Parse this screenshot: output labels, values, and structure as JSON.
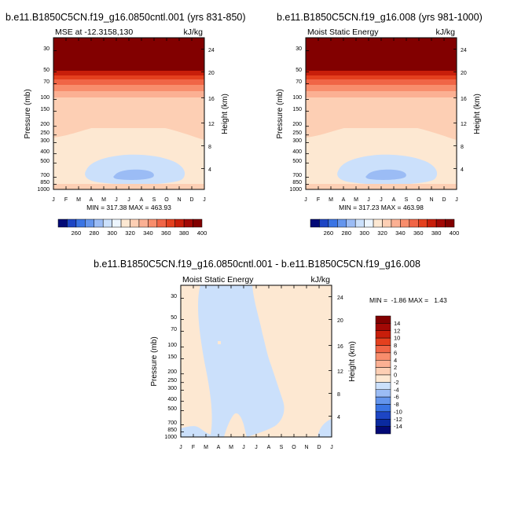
{
  "chart_data": [
    {
      "type": "heatmap",
      "title": "b.e11.B1850C5CN.f19_g16.0850cntl.001 (yrs 831-850)",
      "left_string": "MSE at -12.3158,130",
      "right_string": "kJ/kg",
      "ylabel": "Pressure (mb)",
      "ylabel_right": "Height (km)",
      "x_ticks": [
        "J",
        "F",
        "M",
        "A",
        "M",
        "J",
        "J",
        "A",
        "S",
        "O",
        "N",
        "D",
        "J"
      ],
      "y_ticks": [
        "30",
        "50",
        "70",
        "100",
        "150",
        "200",
        "250",
        "300",
        "400",
        "500",
        "700",
        "850",
        "1000"
      ],
      "y_ticks_right": [
        "24",
        "20",
        "16",
        "12",
        "8",
        "4"
      ],
      "log_pressure_axis": true,
      "ylim": [
        1000,
        20
      ],
      "stats": "MIN = 317.38 MAX = 463.93",
      "colorbar_labels": [
        "260",
        "280",
        "300",
        "320",
        "340",
        "360",
        "380",
        "400"
      ],
      "colorbar_colors": [
        "#030a76",
        "#1d45c4",
        "#3a74e4",
        "#6495ed",
        "#9bbcf5",
        "#cbe0fb",
        "#ecf5fe",
        "#fde8d2",
        "#fdcfb4",
        "#fbb093",
        "#f88d6c",
        "#f06546",
        "#e4401e",
        "#c81e0a",
        "#a20805",
        "#820000"
      ],
      "bands": [
        {
          "level_range": "20-60",
          "min_kJkg": 400
        },
        {
          "level_range": "60-110",
          "range_kJkg": "360-400"
        },
        {
          "level_range": "110-290",
          "range_kJkg": "340-360"
        },
        {
          "level_range": "290-1000",
          "range_kJkg": "320-340"
        },
        {
          "level_range": "500-850",
          "range_kJkg": "300-320",
          "months": "Mar-Nov"
        }
      ]
    },
    {
      "type": "heatmap",
      "title": "b.e11.B1850C5CN.f19_g16.008 (yrs 981-1000)",
      "left_string": "Moist Static Energy",
      "right_string": "kJ/kg",
      "ylabel": "Pressure (mb)",
      "ylabel_right": "Height (km)",
      "x_ticks": [
        "J",
        "F",
        "M",
        "A",
        "M",
        "J",
        "J",
        "A",
        "S",
        "O",
        "N",
        "D",
        "J"
      ],
      "y_ticks": [
        "30",
        "50",
        "70",
        "100",
        "150",
        "200",
        "250",
        "300",
        "400",
        "500",
        "700",
        "850",
        "1000"
      ],
      "y_ticks_right": [
        "24",
        "20",
        "16",
        "12",
        "8",
        "4"
      ],
      "log_pressure_axis": true,
      "ylim": [
        1000,
        20
      ],
      "stats": "MIN = 317.23 MAX = 463.98",
      "colorbar_labels": [
        "260",
        "280",
        "300",
        "320",
        "340",
        "360",
        "380",
        "400"
      ],
      "colorbar_colors": [
        "#030a76",
        "#1d45c4",
        "#3a74e4",
        "#6495ed",
        "#9bbcf5",
        "#cbe0fb",
        "#ecf5fe",
        "#fde8d2",
        "#fdcfb4",
        "#fbb093",
        "#f88d6c",
        "#f06546",
        "#e4401e",
        "#c81e0a",
        "#a20805",
        "#820000"
      ]
    },
    {
      "type": "heatmap",
      "title": "b.e11.B1850C5CN.f19_g16.0850cntl.001 - b.e11.B1850C5CN.f19_g16.008",
      "left_string": "Moist Static Energy",
      "right_string": "kJ/kg",
      "ylabel": "Pressure (mb)",
      "ylabel_right": "Height (km)",
      "x_ticks": [
        "J",
        "F",
        "M",
        "A",
        "M",
        "J",
        "J",
        "A",
        "S",
        "O",
        "N",
        "D",
        "J"
      ],
      "y_ticks": [
        "30",
        "50",
        "70",
        "100",
        "150",
        "200",
        "250",
        "300",
        "400",
        "500",
        "700",
        "850",
        "1000"
      ],
      "y_ticks_right": [
        "24",
        "20",
        "16",
        "12",
        "8",
        "4"
      ],
      "log_pressure_axis": true,
      "ylim": [
        1000,
        20
      ],
      "stats": "MIN =  -1.86 MAX =   1.43",
      "colorbar_labels": [
        "14",
        "12",
        "10",
        "8",
        "6",
        "4",
        "2",
        "0",
        "-2",
        "-4",
        "-6",
        "-8",
        "-10",
        "-12",
        "-14"
      ],
      "colorbar_colors": [
        "#820000",
        "#a20805",
        "#c81e0a",
        "#e4401e",
        "#f06546",
        "#f88d6c",
        "#fbb093",
        "#fdcfb4",
        "#fde8d2",
        "#cbe0fb",
        "#9bbcf5",
        "#6495ed",
        "#3a74e4",
        "#1d45c4",
        "#0a2aa0",
        "#030a76"
      ]
    }
  ]
}
